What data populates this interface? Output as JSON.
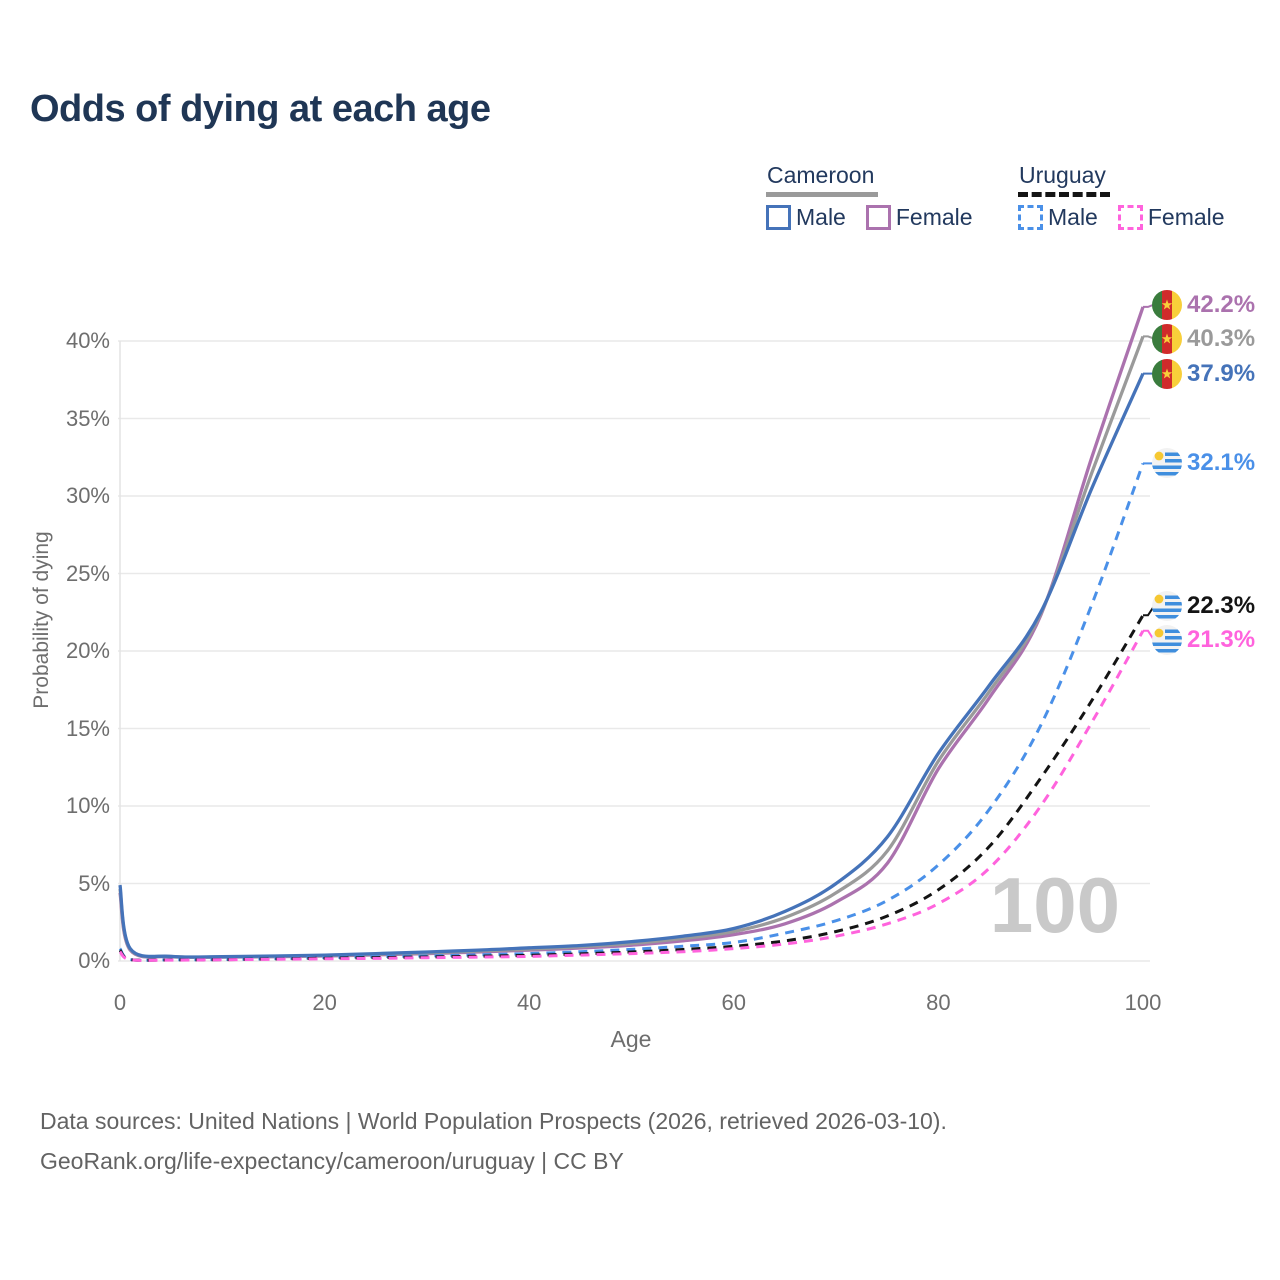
{
  "title": "Odds of dying at each age",
  "colors": {
    "title_text": "#1f3655",
    "legend_text": "#22395e",
    "axis_text": "#6e6e6e",
    "grid": "#e9e9e9",
    "watermark": "#c9c9c9",
    "footer_text": "#636363",
    "cameroon_male": "#4573b9",
    "cameroon_female": "#ab72ae",
    "cameroon_both": "#9a9a9a",
    "uruguay_male": "#4a90e8",
    "uruguay_female": "#ff63dd",
    "uruguay_both": "#141414"
  },
  "legend": {
    "groups": [
      {
        "label": "Cameroon",
        "underline_style": "solid",
        "underline_color": "#9a9a9a",
        "items": [
          {
            "label": "Male",
            "color": "#4573b9",
            "dashed": false
          },
          {
            "label": "Female",
            "color": "#ab72ae",
            "dashed": false
          }
        ]
      },
      {
        "label": "Uruguay",
        "underline_style": "dashed",
        "underline_color": "#141414",
        "items": [
          {
            "label": "Male",
            "color": "#4a90e8",
            "dashed": true
          },
          {
            "label": "Female",
            "color": "#ff63dd",
            "dashed": true
          }
        ]
      }
    ]
  },
  "watermark": "100",
  "footer": {
    "line1": "Data sources: United Nations | World Population Prospects (2026, retrieved 2026-03-10).",
    "line2": "GeoRank.org/life-expectancy/cameroon/uruguay | CC BY"
  },
  "chart_data": {
    "type": "line",
    "title": "Odds of dying at each age",
    "xlabel": "Age",
    "ylabel": "Probability of dying",
    "xlim": [
      0,
      100
    ],
    "ylim_pct": [
      0,
      44
    ],
    "grid": true,
    "legend_position": "top-right",
    "x_ticks": [
      0,
      20,
      40,
      60,
      80,
      100
    ],
    "y_ticks_pct": [
      0,
      5,
      10,
      15,
      20,
      25,
      30,
      35,
      40
    ],
    "y_tick_labels": [
      "0%",
      "5%",
      "10%",
      "15%",
      "20%",
      "25%",
      "30%",
      "35%",
      "40%"
    ],
    "x": [
      0,
      1,
      5,
      10,
      15,
      20,
      25,
      30,
      35,
      40,
      45,
      50,
      55,
      60,
      65,
      70,
      75,
      80,
      85,
      90,
      95,
      100
    ],
    "series": [
      {
        "name": "Cameroon Female",
        "country": "cameroon",
        "sex": "female",
        "color": "#ab72ae",
        "dashed": false,
        "end_label": "42.2%",
        "values_pct": [
          4.4,
          0.7,
          0.28,
          0.25,
          0.28,
          0.32,
          0.4,
          0.48,
          0.58,
          0.7,
          0.84,
          1.02,
          1.3,
          1.7,
          2.4,
          3.8,
          6.3,
          12.4,
          17.0,
          22.3,
          32.5,
          42.2
        ]
      },
      {
        "name": "Cameroon Both sexes",
        "country": "cameroon",
        "sex": "both",
        "color": "#9a9a9a",
        "dashed": false,
        "end_label": "40.3%",
        "values_pct": [
          4.65,
          0.75,
          0.29,
          0.26,
          0.3,
          0.35,
          0.44,
          0.53,
          0.64,
          0.77,
          0.92,
          1.13,
          1.45,
          1.9,
          2.8,
          4.4,
          7.1,
          12.9,
          17.4,
          22.4,
          31.5,
          40.3
        ]
      },
      {
        "name": "Cameroon Male",
        "country": "cameroon",
        "sex": "male",
        "color": "#4573b9",
        "dashed": false,
        "end_label": "37.9%",
        "values_pct": [
          4.9,
          0.8,
          0.3,
          0.28,
          0.32,
          0.38,
          0.48,
          0.58,
          0.7,
          0.85,
          1.0,
          1.25,
          1.6,
          2.1,
          3.2,
          5.0,
          8.0,
          13.4,
          17.8,
          22.5,
          30.5,
          37.9
        ]
      },
      {
        "name": "Uruguay Male",
        "country": "uruguay",
        "sex": "male",
        "color": "#4a90e8",
        "dashed": true,
        "end_label": "32.1%",
        "values_pct": [
          0.8,
          0.1,
          0.08,
          0.1,
          0.15,
          0.22,
          0.28,
          0.33,
          0.4,
          0.48,
          0.6,
          0.75,
          0.95,
          1.2,
          1.8,
          2.6,
          3.9,
          6.2,
          9.8,
          15.2,
          23.0,
          32.1
        ]
      },
      {
        "name": "Uruguay Both sexes",
        "country": "uruguay",
        "sex": "both",
        "color": "#141414",
        "dashed": true,
        "end_label": "22.3%",
        "values_pct": [
          0.7,
          0.09,
          0.07,
          0.09,
          0.13,
          0.18,
          0.22,
          0.26,
          0.31,
          0.37,
          0.46,
          0.58,
          0.74,
          0.95,
          1.3,
          1.9,
          2.9,
          4.6,
          7.4,
          11.8,
          16.8,
          22.3
        ]
      },
      {
        "name": "Uruguay Female",
        "country": "uruguay",
        "sex": "female",
        "color": "#ff63dd",
        "dashed": true,
        "end_label": "21.3%",
        "values_pct": [
          0.6,
          0.08,
          0.06,
          0.08,
          0.11,
          0.14,
          0.17,
          0.21,
          0.25,
          0.3,
          0.38,
          0.48,
          0.6,
          0.8,
          1.1,
          1.6,
          2.4,
          3.7,
          6.0,
          10.0,
          15.4,
          21.3
        ]
      }
    ]
  }
}
